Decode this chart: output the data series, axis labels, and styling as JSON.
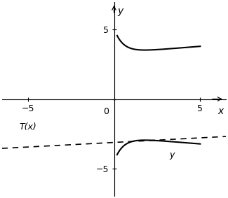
{
  "xlim": [
    -6.5,
    6.5
  ],
  "ylim": [
    -7.0,
    7.0
  ],
  "xticks": [
    -5,
    5
  ],
  "yticks": [
    -5,
    5
  ],
  "xlabel": "x",
  "ylabel": "y",
  "curve_color": "#000000",
  "tangent_color": "#000000",
  "background_color": "#ffffff",
  "label_T": "T(x)",
  "label_y": "y",
  "figsize": [
    3.25,
    2.83
  ],
  "dpi": 100,
  "x_curve_start": 0.18,
  "x_curve_end": 5.0
}
